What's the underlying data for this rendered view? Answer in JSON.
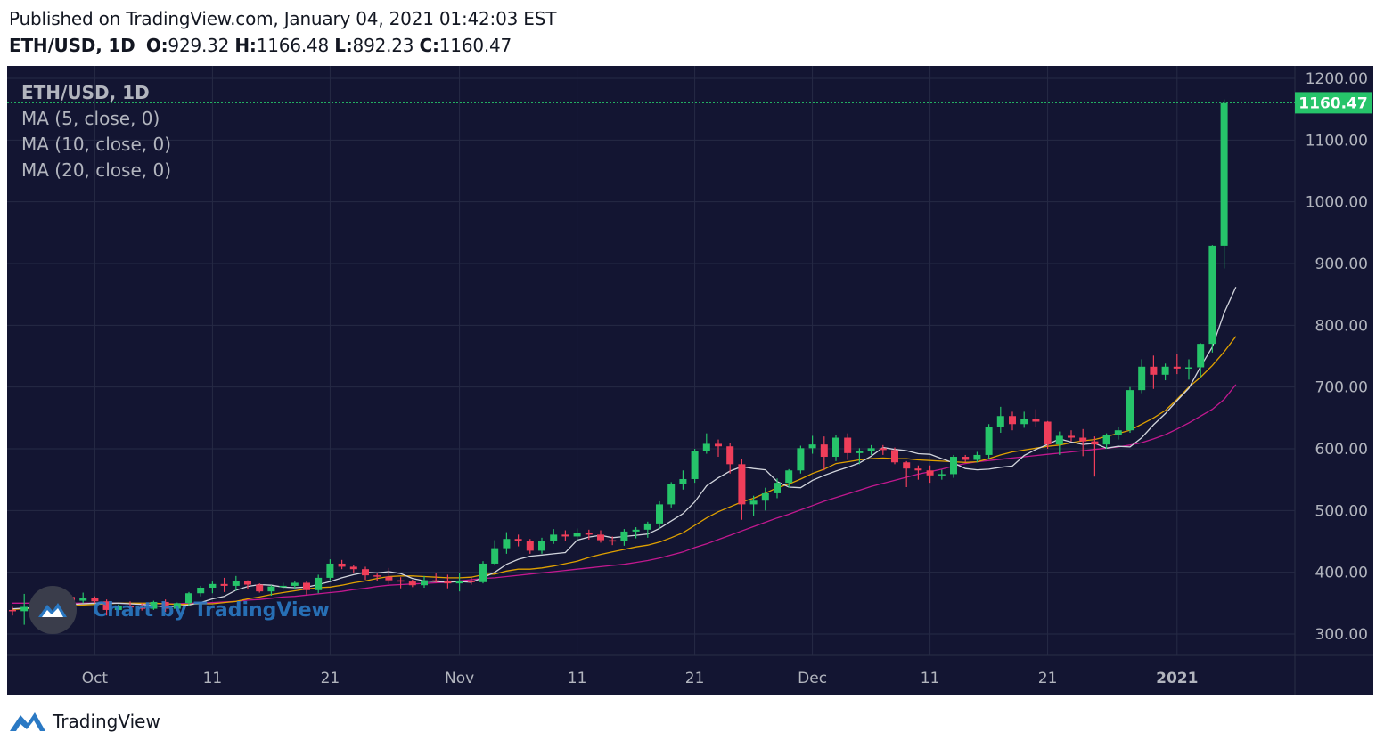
{
  "header": {
    "published": "Published on TradingView.com, January 04, 2021 01:42:03 EST",
    "symbol": "ETH/USD, 1D",
    "o_label": "O:",
    "o_value": "929.32",
    "h_label": "H:",
    "h_value": "1166.48",
    "l_label": "L:",
    "l_value": "892.23",
    "c_label": "C:",
    "c_value": "1160.47"
  },
  "legend": {
    "symbol": "ETH/USD, 1D",
    "ma5": "MA (5, close, 0)",
    "ma10": "MA (10, close, 0)",
    "ma20": "MA (20, close, 0)"
  },
  "watermark": "Chart by TradingView",
  "footer": {
    "brand": "TradingView"
  },
  "colors": {
    "background": "#131532",
    "up": "#26c46a",
    "down": "#ef3e5a",
    "ma5": "#d1d4dc",
    "ma10": "#e0a100",
    "ma20": "#c2188f",
    "last_price": "#26c46a",
    "text": "#b2b5be"
  },
  "chart_data": {
    "type": "candlestick",
    "symbol": "ETH/USD",
    "interval": "1D",
    "ylim": [
      250,
      1220
    ],
    "y_ticks": [
      "1200.00",
      "1100.00",
      "1000.00",
      "900.00",
      "800.00",
      "700.00",
      "600.00",
      "500.00",
      "400.00",
      "300.00"
    ],
    "x_tick_labels": [
      {
        "date": "2020-10-01",
        "label": "Oct"
      },
      {
        "date": "2020-10-11",
        "label": "11"
      },
      {
        "date": "2020-10-21",
        "label": "21"
      },
      {
        "date": "2020-11-01",
        "label": "Nov"
      },
      {
        "date": "2020-11-11",
        "label": "11"
      },
      {
        "date": "2020-11-21",
        "label": "21"
      },
      {
        "date": "2020-12-01",
        "label": "Dec"
      },
      {
        "date": "2020-12-11",
        "label": "11"
      },
      {
        "date": "2020-12-21",
        "label": "21"
      },
      {
        "date": "2021-01-01",
        "label": "2021"
      }
    ],
    "last_price": "1160.47",
    "start_date": "2020-09-24",
    "ohlc": [
      [
        339,
        344,
        330,
        337
      ],
      [
        337,
        365,
        315,
        344
      ],
      [
        344,
        350,
        340,
        345
      ],
      [
        345,
        353,
        337,
        342
      ],
      [
        342,
        361,
        336,
        360
      ],
      [
        360,
        363,
        351,
        354
      ],
      [
        354,
        367,
        350,
        359
      ],
      [
        359,
        361,
        350,
        353
      ],
      [
        353,
        356,
        330,
        339
      ],
      [
        339,
        348,
        334,
        346
      ],
      [
        346,
        353,
        340,
        343
      ],
      [
        343,
        350,
        338,
        341
      ],
      [
        341,
        354,
        339,
        352
      ],
      [
        352,
        356,
        336,
        341
      ],
      [
        341,
        351,
        338,
        350
      ],
      [
        350,
        368,
        346,
        366
      ],
      [
        366,
        378,
        361,
        375
      ],
      [
        375,
        385,
        366,
        381
      ],
      [
        381,
        391,
        368,
        378
      ],
      [
        378,
        394,
        370,
        386
      ],
      [
        386,
        387,
        372,
        380
      ],
      [
        380,
        382,
        367,
        369
      ],
      [
        369,
        379,
        362,
        377
      ],
      [
        377,
        383,
        372,
        378
      ],
      [
        378,
        386,
        372,
        383
      ],
      [
        383,
        385,
        364,
        371
      ],
      [
        371,
        396,
        366,
        391
      ],
      [
        391,
        421,
        387,
        414
      ],
      [
        414,
        420,
        405,
        409
      ],
      [
        409,
        412,
        398,
        405
      ],
      [
        405,
        409,
        388,
        395
      ],
      [
        395,
        398,
        386,
        393
      ],
      [
        393,
        407,
        381,
        387
      ],
      [
        387,
        392,
        374,
        385
      ],
      [
        385,
        388,
        376,
        379
      ],
      [
        379,
        394,
        375,
        387
      ],
      [
        387,
        398,
        383,
        385
      ],
      [
        385,
        396,
        374,
        382
      ],
      [
        382,
        399,
        369,
        386
      ],
      [
        386,
        392,
        380,
        384
      ],
      [
        384,
        418,
        382,
        414
      ],
      [
        414,
        452,
        411,
        439
      ],
      [
        439,
        465,
        430,
        454
      ],
      [
        454,
        461,
        442,
        450
      ],
      [
        450,
        454,
        430,
        435
      ],
      [
        435,
        456,
        430,
        450
      ],
      [
        450,
        470,
        446,
        461
      ],
      [
        461,
        468,
        450,
        458
      ],
      [
        458,
        471,
        451,
        464
      ],
      [
        464,
        469,
        453,
        461
      ],
      [
        461,
        468,
        448,
        452
      ],
      [
        452,
        458,
        444,
        451
      ],
      [
        451,
        470,
        443,
        466
      ],
      [
        466,
        473,
        455,
        469
      ],
      [
        469,
        482,
        456,
        479
      ],
      [
        479,
        515,
        470,
        510
      ],
      [
        510,
        546,
        505,
        543
      ],
      [
        543,
        565,
        534,
        551
      ],
      [
        551,
        600,
        545,
        597
      ],
      [
        597,
        625,
        592,
        608
      ],
      [
        608,
        615,
        587,
        604
      ],
      [
        604,
        610,
        560,
        575
      ],
      [
        575,
        583,
        485,
        510
      ],
      [
        510,
        524,
        491,
        516
      ],
      [
        516,
        537,
        500,
        528
      ],
      [
        528,
        552,
        520,
        545
      ],
      [
        545,
        567,
        537,
        565
      ],
      [
        565,
        605,
        560,
        601
      ],
      [
        601,
        621,
        592,
        607
      ],
      [
        607,
        620,
        565,
        587
      ],
      [
        587,
        622,
        580,
        618
      ],
      [
        618,
        625,
        582,
        593
      ],
      [
        593,
        601,
        575,
        597
      ],
      [
        597,
        606,
        590,
        601
      ],
      [
        601,
        606,
        590,
        598
      ],
      [
        598,
        602,
        575,
        578
      ],
      [
        578,
        580,
        538,
        568
      ],
      [
        568,
        573,
        550,
        565
      ],
      [
        565,
        573,
        545,
        557
      ],
      [
        557,
        566,
        550,
        559
      ],
      [
        559,
        590,
        553,
        587
      ],
      [
        587,
        590,
        578,
        582
      ],
      [
        582,
        595,
        578,
        590
      ],
      [
        590,
        640,
        584,
        636
      ],
      [
        636,
        668,
        626,
        653
      ],
      [
        653,
        660,
        630,
        640
      ],
      [
        640,
        660,
        634,
        648
      ],
      [
        648,
        664,
        635,
        644
      ],
      [
        644,
        645,
        600,
        607
      ],
      [
        607,
        628,
        590,
        621
      ],
      [
        621,
        630,
        612,
        618
      ],
      [
        618,
        632,
        588,
        612
      ],
      [
        612,
        620,
        555,
        607
      ],
      [
        607,
        625,
        600,
        622
      ],
      [
        622,
        636,
        615,
        630
      ],
      [
        630,
        700,
        626,
        695
      ],
      [
        695,
        745,
        690,
        733
      ],
      [
        733,
        751,
        697,
        720
      ],
      [
        720,
        738,
        711,
        733
      ],
      [
        733,
        754,
        721,
        730
      ],
      [
        730,
        745,
        712,
        732
      ],
      [
        732,
        771,
        716,
        770
      ],
      [
        770,
        930,
        756,
        929
      ],
      [
        929,
        1166,
        892,
        1160
      ]
    ],
    "ma5": [
      341,
      342,
      343,
      345,
      346,
      348,
      349,
      350,
      350,
      350,
      349,
      348,
      346,
      344,
      345,
      347,
      351,
      357,
      361,
      371,
      377,
      380,
      379,
      376,
      375,
      376,
      380,
      385,
      391,
      396,
      400,
      399,
      401,
      398,
      390,
      386,
      385,
      384,
      385,
      384,
      391,
      400,
      413,
      421,
      426,
      428,
      430,
      432,
      452,
      457,
      460,
      456,
      458,
      460,
      462,
      471,
      483,
      495,
      514,
      540,
      553,
      564,
      571,
      568,
      566,
      547,
      538,
      537,
      549,
      557,
      564,
      570,
      577,
      588,
      602,
      599,
      597,
      592,
      591,
      584,
      577,
      568,
      566,
      567,
      570,
      572,
      589,
      599,
      607,
      616,
      611,
      607,
      609,
      601,
      604,
      603,
      618,
      639,
      657,
      678,
      698,
      733,
      765,
      820,
      862
    ],
    "ma10": [
      340,
      341,
      342,
      344,
      345,
      346,
      347,
      348,
      349,
      350,
      350,
      350,
      350,
      349,
      348,
      348,
      349,
      349,
      351,
      353,
      357,
      360,
      364,
      367,
      370,
      373,
      375,
      376,
      379,
      383,
      386,
      390,
      393,
      394,
      394,
      393,
      392,
      391,
      391,
      392,
      396,
      397,
      402,
      405,
      405,
      407,
      410,
      414,
      418,
      424,
      429,
      433,
      437,
      441,
      444,
      449,
      456,
      464,
      476,
      488,
      498,
      506,
      514,
      520,
      528,
      537,
      543,
      551,
      560,
      567,
      576,
      579,
      582,
      584,
      585,
      584,
      584,
      582,
      581,
      580,
      579,
      578,
      579,
      584,
      590,
      595,
      598,
      601,
      604,
      606,
      610,
      613,
      615,
      620,
      625,
      630,
      640,
      650,
      662,
      680,
      700,
      716,
      735,
      757,
      782
    ],
    "ma20": [
      350,
      350,
      350,
      350,
      350,
      350,
      350,
      350,
      350,
      350,
      349,
      349,
      349,
      349,
      349,
      350,
      350,
      351,
      352,
      353,
      355,
      356,
      358,
      360,
      361,
      363,
      365,
      367,
      369,
      372,
      374,
      377,
      379,
      380,
      381,
      382,
      383,
      384,
      386,
      388,
      390,
      391,
      393,
      395,
      397,
      399,
      401,
      403,
      405,
      407,
      409,
      411,
      413,
      416,
      419,
      423,
      428,
      433,
      440,
      446,
      453,
      460,
      467,
      474,
      481,
      488,
      494,
      501,
      508,
      515,
      521,
      527,
      533,
      539,
      544,
      549,
      554,
      559,
      563,
      567,
      572,
      576,
      579,
      581,
      583,
      585,
      587,
      589,
      591,
      593,
      595,
      597,
      599,
      601,
      603,
      606,
      610,
      616,
      623,
      632,
      642,
      653,
      664,
      680,
      704
    ]
  }
}
